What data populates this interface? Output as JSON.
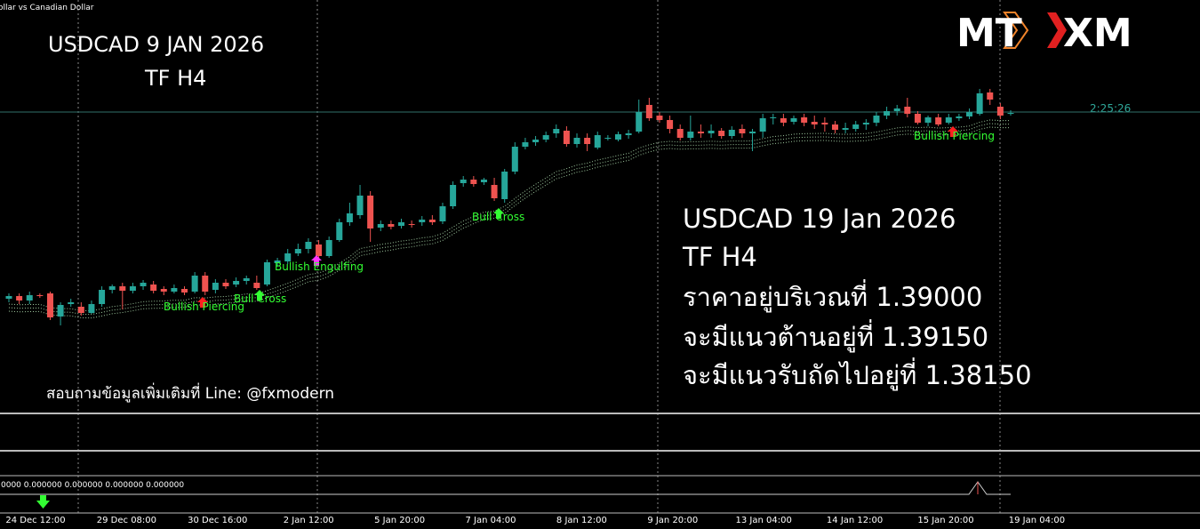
{
  "chart_data": {
    "type": "candlestick",
    "symbol_title": "ollar vs Canadian Dollar",
    "logo": {
      "left": "MT",
      "right": "XM"
    },
    "title_left": [
      "USDCAD  9   JAN 2026",
      "TF H4"
    ],
    "title_right": [
      "USDCAD 19 Jan 2026",
      "TF H4",
      "ราคาอยู่บริเวณที่ 1.39000",
      "จะมีแนวต้านอยู่ที่ 1.39150",
      "จะมีแนวรับถัดไปอยู่ที่ 1.38150"
    ],
    "contact": "สอบถามข้อมูลเพิ่มเติมที่ Line: @fxmodern",
    "countdown": "2:25:26",
    "indicator_text": "0000 0.000000 0.000000 0.000000 0.000000",
    "annotations": [
      "Bullish Piercing",
      "Bull Cross",
      "Bullish Engulfing",
      "Bull Cross",
      "Bullish Piercing"
    ],
    "xtick_labels": [
      "24 Dec 12:00",
      "29 Dec 08:00",
      "30 Dec 16:00",
      "2 Jan 12:00",
      "5 Jan 20:00",
      "7 Jan 04:00",
      "8 Jan 12:00",
      "9 Jan 20:00",
      "13 Jan 04:00",
      "14 Jan 12:00",
      "15 Jan 20:00",
      "19 Jan 04:00"
    ],
    "ylim": [
      1.3561,
      1.4026
    ],
    "last_price": 1.39,
    "up_color": "#26a69a",
    "down_color": "#ef5350",
    "price_line_color": "#2f6f6a",
    "open": [
      1.369,
      1.3693,
      1.3688,
      1.3694,
      1.3696,
      1.367,
      1.3684,
      1.3681,
      1.3674,
      1.3684,
      1.37,
      1.3704,
      1.3699,
      1.3704,
      1.3706,
      1.3701,
      1.3698,
      1.3701,
      1.3698,
      1.3716,
      1.37,
      1.3708,
      1.3706,
      1.371,
      1.3708,
      1.3706,
      1.373,
      1.3732,
      1.3741,
      1.3746,
      1.3751,
      1.3738,
      1.3756,
      1.3776,
      1.3784,
      1.3806,
      1.377,
      1.3774,
      1.3772,
      1.3774,
      1.3776,
      1.3779,
      1.3777,
      1.3794,
      1.382,
      1.3824,
      1.3821,
      1.3818,
      1.3802,
      1.3833,
      1.3861,
      1.3866,
      1.3869,
      1.3876,
      1.3879,
      1.3864,
      1.3871,
      1.386,
      1.387,
      1.3869,
      1.3874,
      1.3878,
      1.3908,
      1.3896,
      1.3891,
      1.3881,
      1.3871,
      1.3878,
      1.3876,
      1.3879,
      1.3873,
      1.3881,
      1.3876,
      1.3878,
      1.3893,
      1.3893,
      1.3889,
      1.3894,
      1.3889,
      1.3888,
      1.3886,
      1.388,
      1.3881,
      1.3886,
      1.3888,
      1.3896,
      1.3901,
      1.3906,
      1.3898,
      1.3888,
      1.3894,
      1.3888,
      1.3893,
      1.3895,
      1.3898,
      1.3922,
      1.3906,
      1.3898
    ],
    "high": [
      1.3696,
      1.3696,
      1.3698,
      1.3696,
      1.3698,
      1.3686,
      1.369,
      1.3686,
      1.3688,
      1.3704,
      1.3706,
      1.3708,
      1.3708,
      1.3711,
      1.371,
      1.3704,
      1.3706,
      1.3704,
      1.372,
      1.372,
      1.3712,
      1.3712,
      1.3714,
      1.3716,
      1.3716,
      1.3734,
      1.3736,
      1.3746,
      1.3752,
      1.3758,
      1.3756,
      1.376,
      1.378,
      1.3798,
      1.3818,
      1.3811,
      1.3778,
      1.3778,
      1.378,
      1.3778,
      1.3783,
      1.3784,
      1.3798,
      1.3822,
      1.3828,
      1.3828,
      1.3826,
      1.3826,
      1.3836,
      1.3866,
      1.3871,
      1.3873,
      1.3878,
      1.3886,
      1.3884,
      1.3876,
      1.3876,
      1.3878,
      1.3874,
      1.3878,
      1.388,
      1.3914,
      1.3916,
      1.39,
      1.3896,
      1.3886,
      1.3896,
      1.3886,
      1.3886,
      1.3882,
      1.3884,
      1.3886,
      1.3881,
      1.3898,
      1.3898,
      1.3898,
      1.3896,
      1.3898,
      1.3896,
      1.3894,
      1.389,
      1.3888,
      1.389,
      1.3892,
      1.39,
      1.3906,
      1.3908,
      1.3916,
      1.3901,
      1.3896,
      1.3898,
      1.3898,
      1.3898,
      1.3904,
      1.3926,
      1.3926,
      1.391,
      1.3902
    ],
    "low": [
      1.3686,
      1.3684,
      1.3684,
      1.3691,
      1.3666,
      1.366,
      1.3681,
      1.3671,
      1.3673,
      1.3681,
      1.3696,
      1.3678,
      1.3696,
      1.37,
      1.3696,
      1.3694,
      1.3696,
      1.3694,
      1.3696,
      1.3694,
      1.3696,
      1.3701,
      1.3703,
      1.3706,
      1.37,
      1.3704,
      1.3726,
      1.3729,
      1.3738,
      1.3741,
      1.3736,
      1.3736,
      1.3754,
      1.3772,
      1.378,
      1.3754,
      1.3766,
      1.3768,
      1.3769,
      1.377,
      1.3772,
      1.3773,
      1.3774,
      1.3791,
      1.3816,
      1.3816,
      1.3818,
      1.38,
      1.3798,
      1.383,
      1.3858,
      1.3862,
      1.3866,
      1.3871,
      1.3861,
      1.386,
      1.3856,
      1.3858,
      1.3868,
      1.3867,
      1.387,
      1.3876,
      1.389,
      1.3888,
      1.3876,
      1.3868,
      1.3868,
      1.3871,
      1.3871,
      1.387,
      1.387,
      1.3871,
      1.3856,
      1.3871,
      1.3886,
      1.3884,
      1.3886,
      1.3884,
      1.3881,
      1.3878,
      1.3876,
      1.3876,
      1.3878,
      1.388,
      1.3884,
      1.3892,
      1.3896,
      1.3894,
      1.3886,
      1.3884,
      1.3884,
      1.3886,
      1.389,
      1.3892,
      1.3896,
      1.3908,
      1.3892,
      1.3896
    ],
    "close": [
      1.3693,
      1.3688,
      1.3694,
      1.3693,
      1.3669,
      1.3683,
      1.3686,
      1.3674,
      1.3684,
      1.37,
      1.3704,
      1.3699,
      1.3704,
      1.3708,
      1.3699,
      1.3698,
      1.3702,
      1.3697,
      1.3716,
      1.3698,
      1.3708,
      1.3704,
      1.371,
      1.3713,
      1.3702,
      1.3731,
      1.3733,
      1.3741,
      1.3746,
      1.3754,
      1.3738,
      1.3756,
      1.3776,
      1.3786,
      1.3806,
      1.3769,
      1.3774,
      1.3771,
      1.3776,
      1.3773,
      1.3779,
      1.3776,
      1.3794,
      1.3818,
      1.3824,
      1.3819,
      1.3824,
      1.3803,
      1.3833,
      1.3861,
      1.3866,
      1.3869,
      1.3874,
      1.3881,
      1.3864,
      1.3871,
      1.3864,
      1.3874,
      1.3871,
      1.3875,
      1.3876,
      1.39,
      1.3893,
      1.3891,
      1.3881,
      1.3871,
      1.3878,
      1.3876,
      1.3879,
      1.3873,
      1.388,
      1.3876,
      1.3878,
      1.3893,
      1.3894,
      1.3888,
      1.3893,
      1.3888,
      1.3886,
      1.3886,
      1.388,
      1.3882,
      1.3886,
      1.3888,
      1.3896,
      1.3901,
      1.3904,
      1.3898,
      1.3888,
      1.3894,
      1.3886,
      1.3894,
      1.3895,
      1.39,
      1.3921,
      1.3914,
      1.3896,
      1.3899
    ]
  }
}
